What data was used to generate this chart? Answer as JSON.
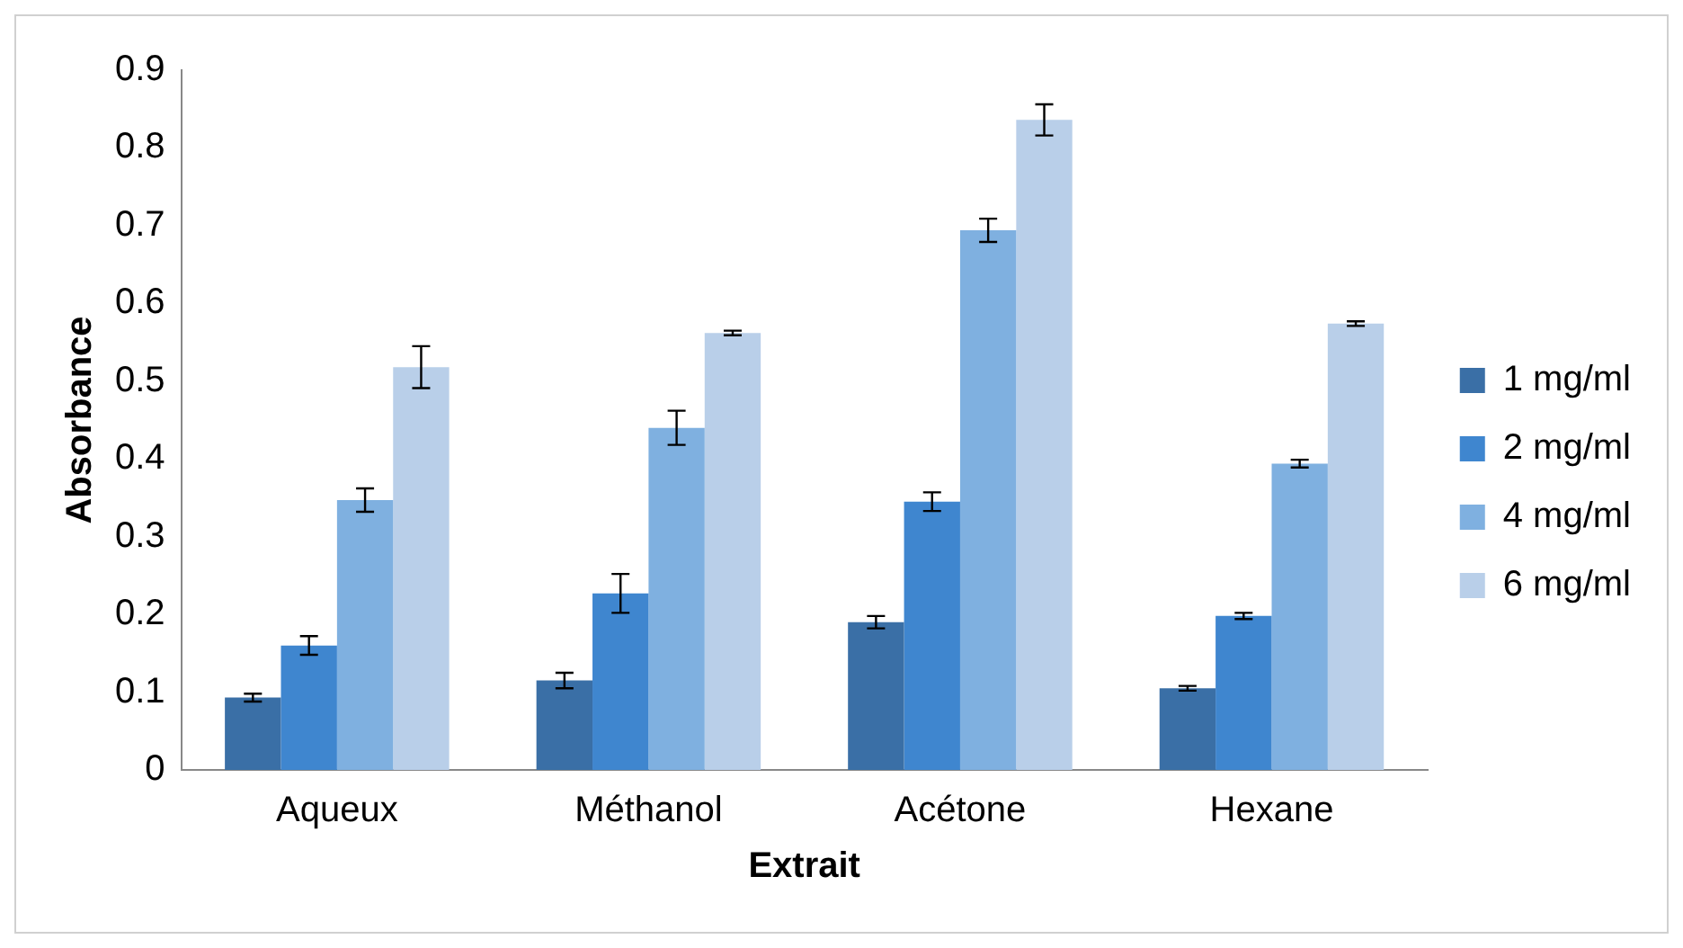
{
  "chart_data": {
    "type": "bar",
    "xlabel": "Extrait",
    "ylabel": "Absorbance",
    "categories": [
      "Aqueux",
      "Méthanol",
      "Acétone",
      "Hexane"
    ],
    "series": [
      {
        "name": "1 mg/ml",
        "color": "#3a6fa6",
        "values": [
          0.093,
          0.115,
          0.19,
          0.105
        ],
        "errors": [
          0.005,
          0.01,
          0.008,
          0.003
        ]
      },
      {
        "name": "2 mg/ml",
        "color": "#3f86cf",
        "values": [
          0.16,
          0.227,
          0.345,
          0.198
        ],
        "errors": [
          0.012,
          0.025,
          0.012,
          0.004
        ]
      },
      {
        "name": "4 mg/ml",
        "color": "#7fb0e0",
        "values": [
          0.347,
          0.44,
          0.694,
          0.394
        ],
        "errors": [
          0.015,
          0.022,
          0.015,
          0.005
        ]
      },
      {
        "name": "6 mg/ml",
        "color": "#b9cfe9",
        "values": [
          0.518,
          0.562,
          0.836,
          0.574
        ],
        "errors": [
          0.027,
          0.003,
          0.02,
          0.003
        ]
      }
    ],
    "ylim": [
      0,
      0.9
    ],
    "yticks": [
      0,
      0.1,
      0.2,
      0.3,
      0.4,
      0.5,
      0.6,
      0.7,
      0.8,
      0.9
    ],
    "grid": false,
    "legend": "right"
  }
}
